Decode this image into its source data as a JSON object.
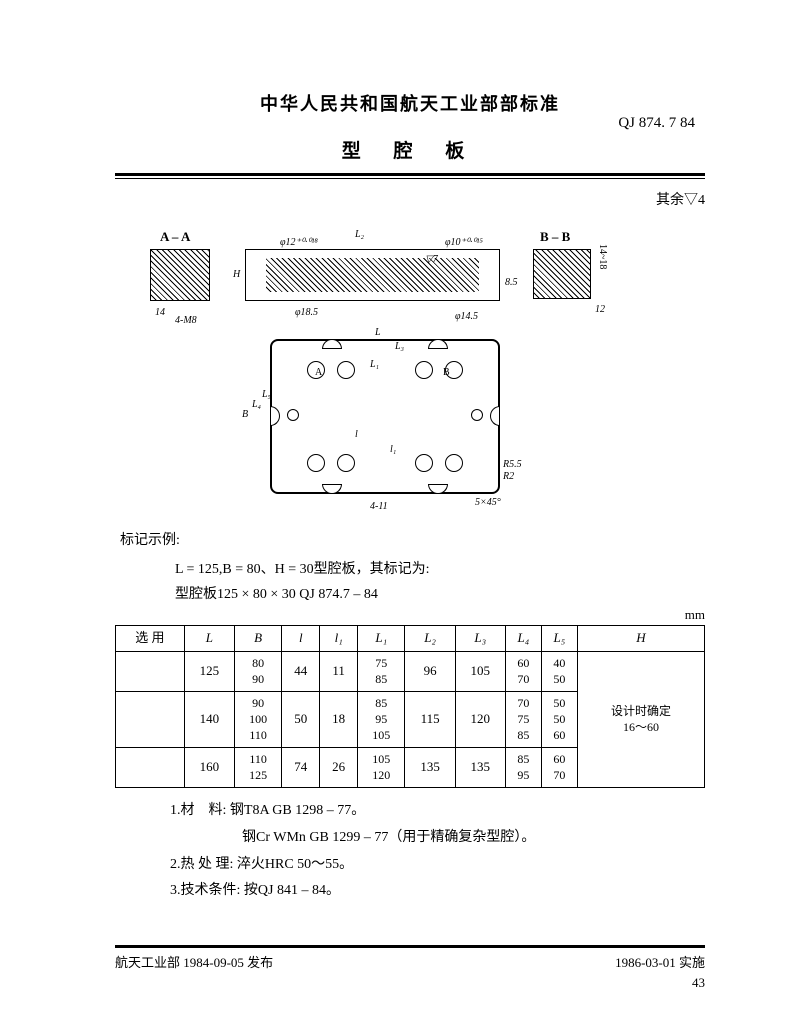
{
  "header": {
    "title": "中华人民共和国航天工业部部标准",
    "standard_code": "QJ 874. 7  84",
    "sub_title": "型 腔 板"
  },
  "note_right": "其余▽4",
  "diagram": {
    "label_aa": "A – A",
    "label_bb": "B – B",
    "dim_L2": "L₂",
    "dim_phi12": "φ12⁺⁰·⁰¹⁸",
    "dim_phi10": "φ10⁺⁰·⁰¹⁵",
    "dim_H": "H",
    "dim_18_5": "φ18.5",
    "dim_14_5": "φ14.5",
    "dim_14m8": "14",
    "dim_4m8": "4-M8",
    "dim_8_5": "8.5",
    "dim_12": "12",
    "dim_14_18": "14~18",
    "dim_L": "L",
    "dim_L3": "L₃",
    "dim_L1": "L₁",
    "dim_l": "l",
    "dim_l1": "l₁",
    "dim_B": "B",
    "dim_L4": "L₄",
    "dim_L5": "L₅",
    "dim_R5_5": "R5.5",
    "dim_R2": "R2",
    "dim_5x45": "5×45°",
    "dim_4_11": "4-11",
    "label_A": "A",
    "label_B": "B",
    "tri7": "▽7"
  },
  "marking": {
    "title": "标记示例:",
    "line1": "L = 125,B = 80、H = 30型腔板，其标记为:",
    "line2": "型腔板125 × 80 × 30 QJ 874.7 – 84"
  },
  "table": {
    "unit": "mm",
    "headers": [
      "选 用",
      "L",
      "B",
      "l",
      "l₁",
      "L₁",
      "L₂",
      "L₃",
      "L₄",
      "L₅",
      "H"
    ],
    "rows": [
      {
        "sel": "",
        "L": "125",
        "B": "80\n90",
        "l": "44",
        "l1": "11",
        "L1": "75\n85",
        "L2": "96",
        "L3": "105",
        "L4": "60\n70",
        "L5": "40\n50"
      },
      {
        "sel": "",
        "L": "140",
        "B": "90\n100\n110",
        "l": "50",
        "l1": "18",
        "L1": "85\n95\n105",
        "L2": "115",
        "L3": "120",
        "L4": "70\n75\n85",
        "L5": "50\n50\n60"
      },
      {
        "sel": "",
        "L": "160",
        "B": "110\n125",
        "l": "74",
        "l1": "26",
        "L1": "105\n120",
        "L2": "135",
        "L3": "135",
        "L4": "85\n95",
        "L5": "60\n70"
      }
    ],
    "H_note": "设计时确定\n16～60"
  },
  "notes": {
    "n1": "1.材　料: 钢T8A  GB 1298 – 77。",
    "n1b": "钢Cr WMn  GB 1299 – 77（用于精确复杂型腔）。",
    "n2": "2.热 处 理: 淬火HRC 50～55。",
    "n3": "3.技术条件: 按QJ 841 – 84。"
  },
  "footer": {
    "left": "航天工业部  1984-09-05  发布",
    "right": "1986-03-01  实施",
    "page": "43"
  }
}
